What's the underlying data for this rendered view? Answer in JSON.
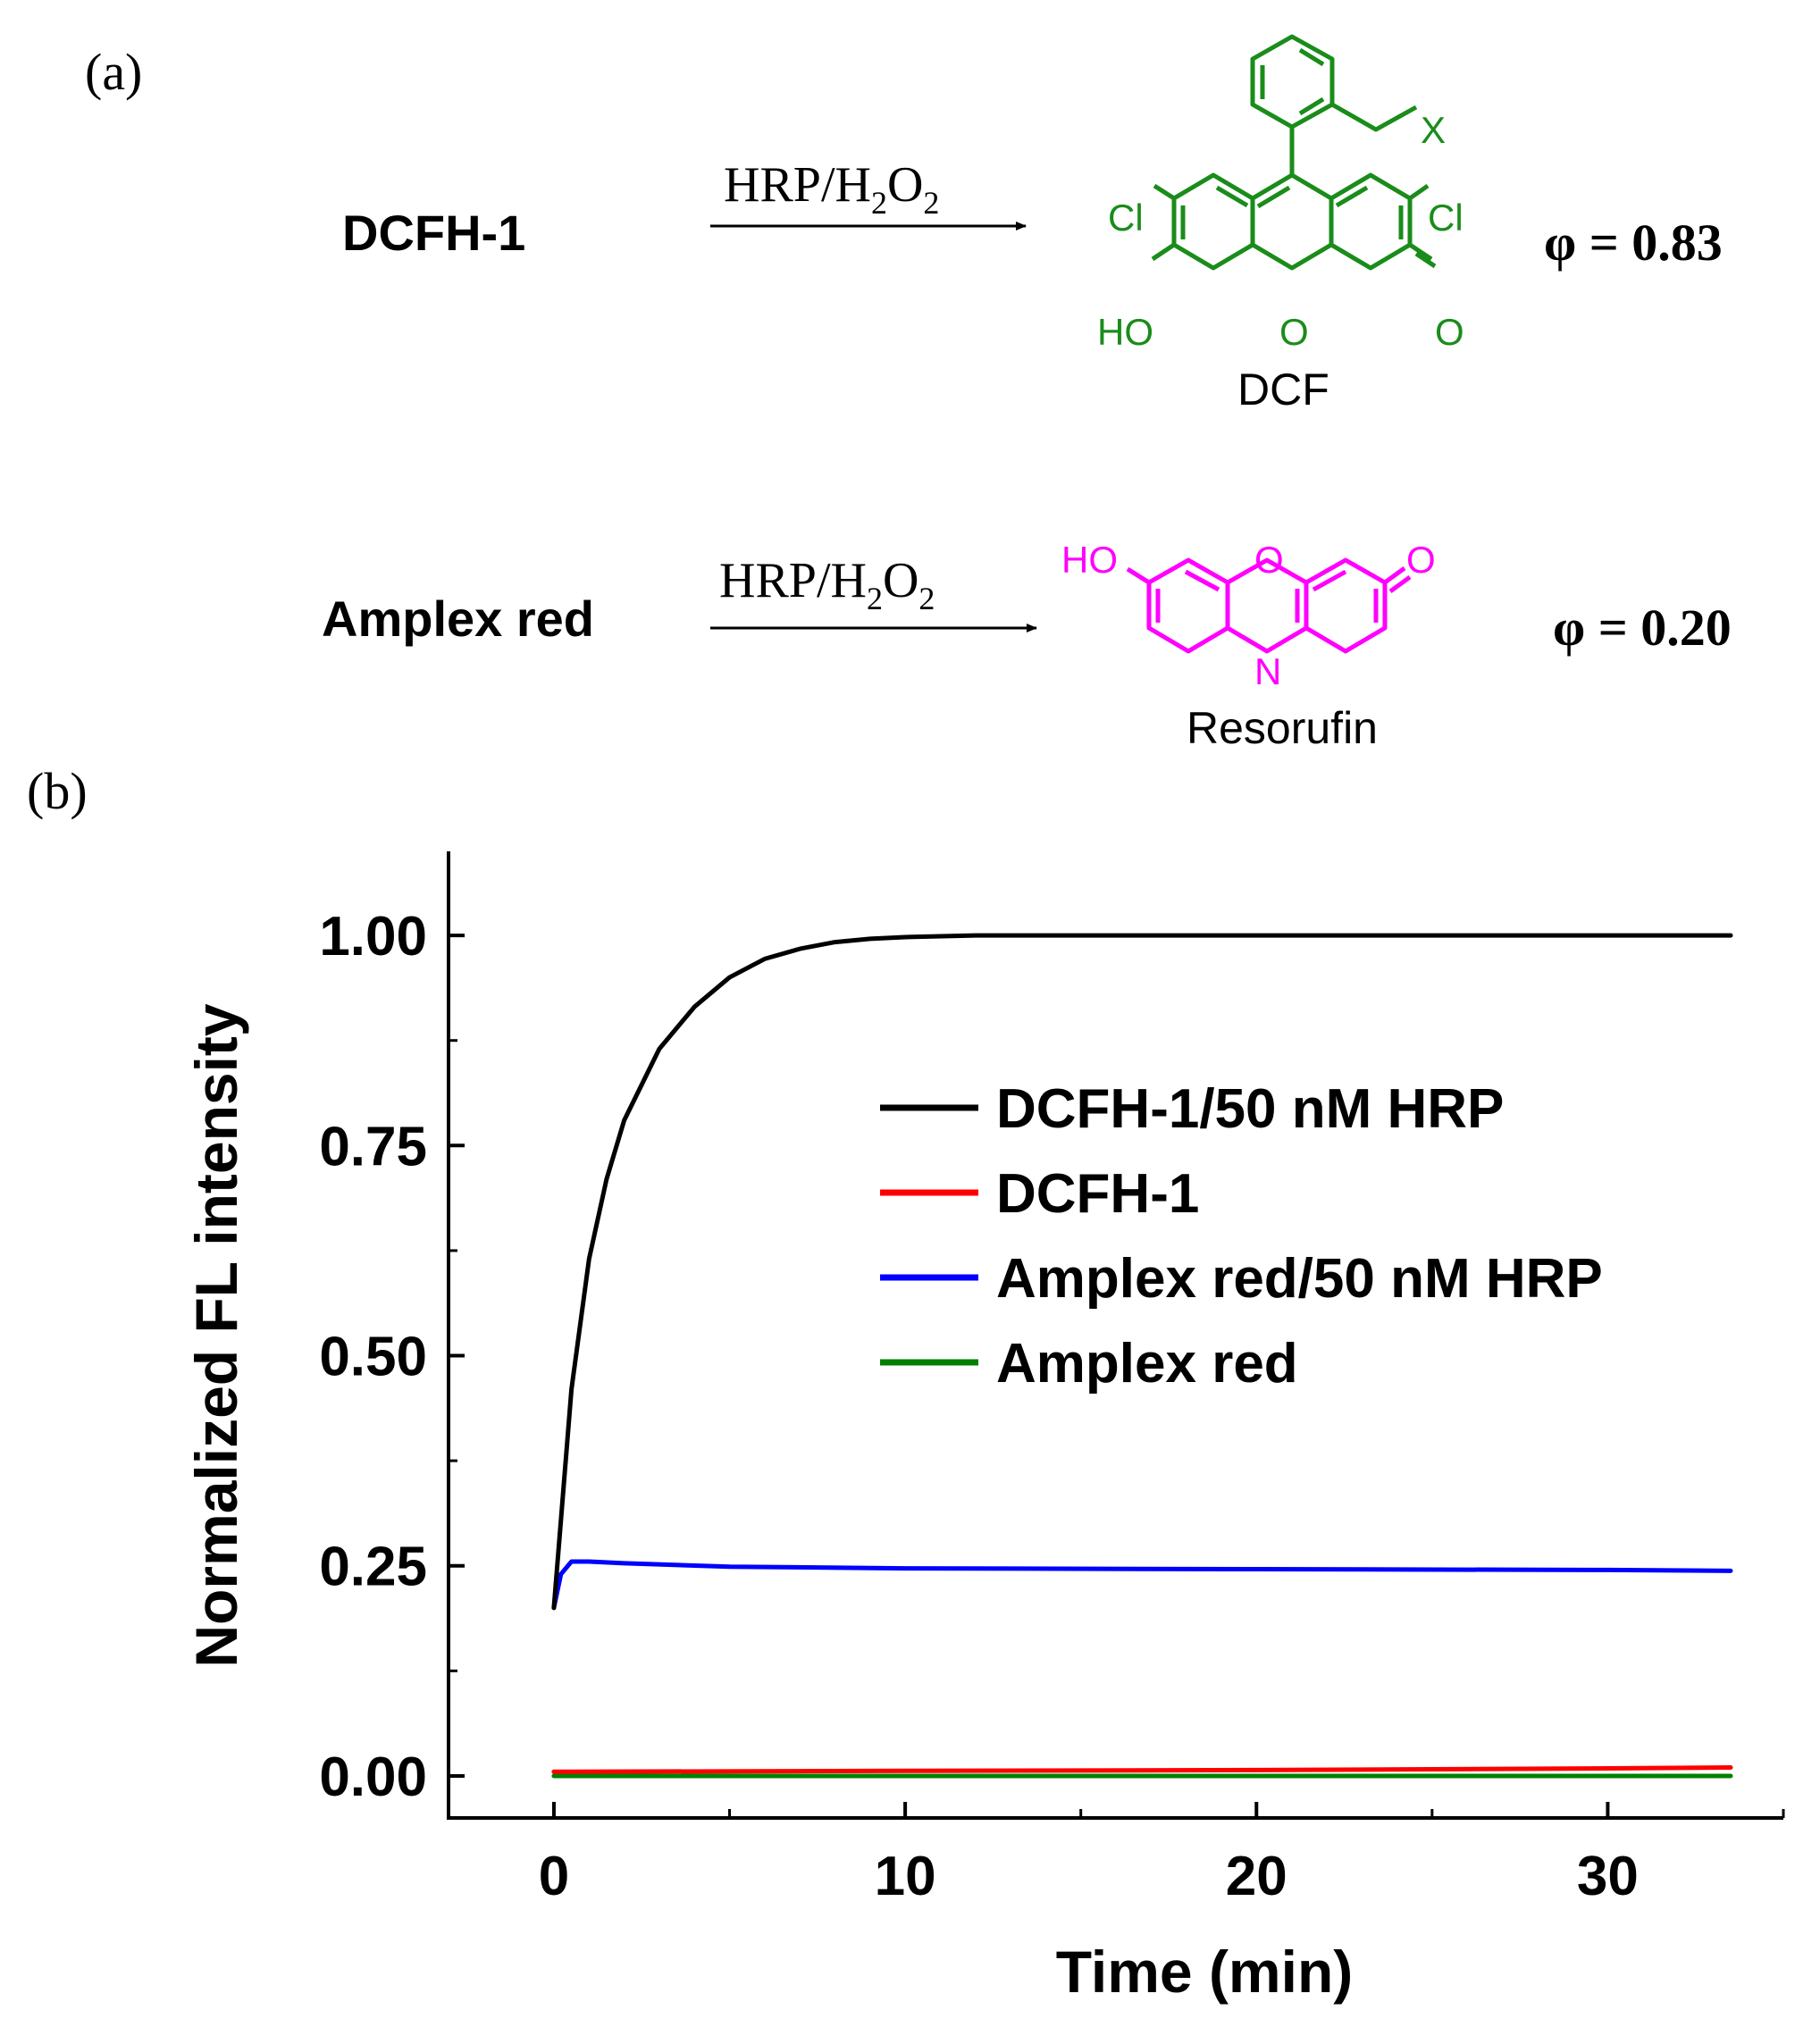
{
  "panel_a": {
    "label": "(a)",
    "reactions": [
      {
        "substrate": "DCFH-1",
        "reagent": {
          "main": "HRP/H",
          "sub1": "2",
          "mid": "O",
          "sub2": "2"
        },
        "product": "DCF",
        "phi": "φ = 0.83",
        "color": "#1a8c1a",
        "atoms": {
          "x": "X",
          "cl_left": "Cl",
          "cl_right": "Cl",
          "ho": "HO",
          "o_ring": "O",
          "o_keto": "O"
        }
      },
      {
        "substrate": "Amplex red",
        "reagent": {
          "main": "HRP/H",
          "sub1": "2",
          "mid": "O",
          "sub2": "2"
        },
        "product": "Resorufin",
        "phi": "φ = 0.20",
        "color": "#ff00ff",
        "atoms": {
          "ho": "HO",
          "o_ring": "O",
          "o_keto": "O",
          "n": "N"
        }
      }
    ]
  },
  "panel_b": {
    "label": "(b)"
  },
  "chart_data": {
    "type": "line",
    "title": "",
    "xlabel": "Time (min)",
    "ylabel": "Normalized FL intensity",
    "xlim": [
      -3,
      35
    ],
    "ylim": [
      -0.05,
      1.1
    ],
    "xticks": [
      0,
      10,
      20,
      30
    ],
    "xtick_labels": [
      "0",
      "10",
      "20",
      "30"
    ],
    "yticks": [
      0.0,
      0.25,
      0.5,
      0.75,
      1.0
    ],
    "ytick_labels": [
      "0.00",
      "0.25",
      "0.50",
      "0.75",
      "1.00"
    ],
    "grid": false,
    "legend_position": "center-right",
    "series": [
      {
        "name": "DCFH-1/50 nM HRP",
        "color": "#000000",
        "x": [
          0,
          0.5,
          1,
          1.5,
          2,
          3,
          4,
          5,
          6,
          7,
          8,
          9,
          10,
          12,
          15,
          20,
          25,
          30,
          33.5
        ],
        "y": [
          0.2,
          0.46,
          0.615,
          0.71,
          0.78,
          0.865,
          0.915,
          0.95,
          0.972,
          0.984,
          0.992,
          0.996,
          0.998,
          1.0,
          1.0,
          1.0,
          1.0,
          1.0,
          1.0
        ]
      },
      {
        "name": "DCFH-1",
        "color": "#ff0000",
        "x": [
          0,
          10,
          20,
          30,
          33.5
        ],
        "y": [
          0.005,
          0.006,
          0.007,
          0.009,
          0.01
        ]
      },
      {
        "name": "Amplex red/50 nM HRP",
        "color": "#0000ff",
        "x": [
          0,
          0.2,
          0.5,
          1,
          2,
          5,
          10,
          20,
          30,
          33.5
        ],
        "y": [
          0.2,
          0.24,
          0.255,
          0.255,
          0.253,
          0.249,
          0.247,
          0.246,
          0.245,
          0.244
        ]
      },
      {
        "name": "Amplex red",
        "color": "#008000",
        "x": [
          0,
          10,
          20,
          30,
          33.5
        ],
        "y": [
          0.0,
          0.0,
          0.0,
          0.0,
          0.0
        ]
      }
    ]
  }
}
